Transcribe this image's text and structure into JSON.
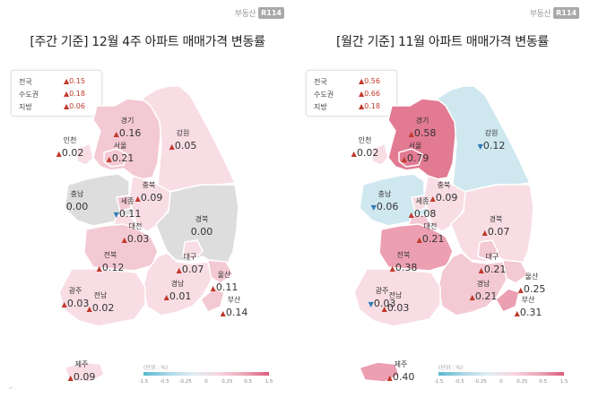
{
  "logo": {
    "text": "부동산",
    "badge": "R114"
  },
  "panels": [
    {
      "id": "weekly",
      "title": "[주간 기준] 12월 4주 아파트 매매가격 변동률",
      "summary": [
        {
          "name": "전국",
          "value": "0.15",
          "dir": "up"
        },
        {
          "name": "수도권",
          "value": "0.18",
          "dir": "up"
        },
        {
          "name": "지방",
          "value": "0.06",
          "dir": "up"
        }
      ],
      "regions": [
        {
          "name": "경기",
          "value": "0.16",
          "dir": "up",
          "color": "#f3c9d4"
        },
        {
          "name": "강원",
          "value": "0.05",
          "dir": "up",
          "color": "#f8dde4"
        },
        {
          "name": "인천",
          "value": "0.02",
          "dir": "up",
          "color": "#f8dde4"
        },
        {
          "name": "서울",
          "value": "0.21",
          "dir": "up",
          "color": "#f3c9d4"
        },
        {
          "name": "충북",
          "value": "0.09",
          "dir": "up",
          "color": "#f8dde4"
        },
        {
          "name": "충남",
          "value": "0.00",
          "dir": "none",
          "color": "#dddddd"
        },
        {
          "name": "세종",
          "value": "0.11",
          "dir": "down",
          "color": "#f3c9d4"
        },
        {
          "name": "대전",
          "value": "0.03",
          "dir": "up",
          "color": "#f8dde4"
        },
        {
          "name": "경북",
          "value": "0.00",
          "dir": "none",
          "color": "#dddddd"
        },
        {
          "name": "전북",
          "value": "0.12",
          "dir": "up",
          "color": "#f3c9d4"
        },
        {
          "name": "대구",
          "value": "0.07",
          "dir": "up",
          "color": "#f8dde4"
        },
        {
          "name": "울산",
          "value": "0.11",
          "dir": "up",
          "color": "#f3c9d4"
        },
        {
          "name": "광주",
          "value": "0.03",
          "dir": "up",
          "color": "#f8dde4"
        },
        {
          "name": "경남",
          "value": "0.01",
          "dir": "up",
          "color": "#f8dde4"
        },
        {
          "name": "전남",
          "value": "0.02",
          "dir": "up",
          "color": "#f8dde4"
        },
        {
          "name": "부산",
          "value": "0.14",
          "dir": "up",
          "color": "#f3c9d4"
        },
        {
          "name": "제주",
          "value": "0.09",
          "dir": "up",
          "color": "#f8dde4"
        }
      ],
      "legend": {
        "unit": "(단위 : %)",
        "ticks": [
          "-1.5",
          "-0.5",
          "-0.25",
          "0",
          "0.25",
          "0.5",
          "1.5"
        ]
      }
    },
    {
      "id": "monthly",
      "title": "[월간 기준] 11월 아파트 매매가격 변동률",
      "summary": [
        {
          "name": "전국",
          "value": "0.56",
          "dir": "up"
        },
        {
          "name": "수도권",
          "value": "0.66",
          "dir": "up"
        },
        {
          "name": "지방",
          "value": "0.18",
          "dir": "up"
        }
      ],
      "regions": [
        {
          "name": "경기",
          "value": "0.58",
          "dir": "up",
          "color": "#e27a92"
        },
        {
          "name": "강원",
          "value": "0.12",
          "dir": "down",
          "color": "#cfe8f0"
        },
        {
          "name": "인천",
          "value": "0.02",
          "dir": "up",
          "color": "#f8dde4"
        },
        {
          "name": "서울",
          "value": "0.79",
          "dir": "up",
          "color": "#e27a92"
        },
        {
          "name": "충북",
          "value": "0.09",
          "dir": "up",
          "color": "#f8dde4"
        },
        {
          "name": "충남",
          "value": "0.06",
          "dir": "down",
          "color": "#cfe8f0"
        },
        {
          "name": "세종",
          "value": "0.08",
          "dir": "up",
          "color": "#f8dde4"
        },
        {
          "name": "대전",
          "value": "0.21",
          "dir": "up",
          "color": "#f3c9d4"
        },
        {
          "name": "경북",
          "value": "0.07",
          "dir": "up",
          "color": "#f8dde4"
        },
        {
          "name": "전북",
          "value": "0.38",
          "dir": "up",
          "color": "#ec9fb1"
        },
        {
          "name": "대구",
          "value": "0.21",
          "dir": "up",
          "color": "#f3c9d4"
        },
        {
          "name": "울산",
          "value": "0.25",
          "dir": "up",
          "color": "#f3c9d4"
        },
        {
          "name": "광주",
          "value": "0.03",
          "dir": "down",
          "color": "#cfe8f0"
        },
        {
          "name": "경남",
          "value": "0.21",
          "dir": "up",
          "color": "#f3c9d4"
        },
        {
          "name": "전남",
          "value": "0.03",
          "dir": "up",
          "color": "#f8dde4"
        },
        {
          "name": "부산",
          "value": "0.31",
          "dir": "up",
          "color": "#ec9fb1"
        },
        {
          "name": "제주",
          "value": "0.40",
          "dir": "up",
          "color": "#ec9fb1"
        }
      ],
      "legend": {
        "unit": "(단위 : %)",
        "ticks": [
          "-1.5",
          "-0.5",
          "-0.25",
          "0",
          "0.25",
          "0.5",
          "1.5"
        ]
      }
    }
  ],
  "legend_colors": [
    "#5ab8d0",
    "#a9d7e5",
    "#e0eef3",
    "#f6d5de",
    "#eca6b8",
    "#dc5c7d"
  ],
  "map_outline_color": "#ffffff",
  "up_color": "#c0392b",
  "down_color": "#2f7bb5"
}
